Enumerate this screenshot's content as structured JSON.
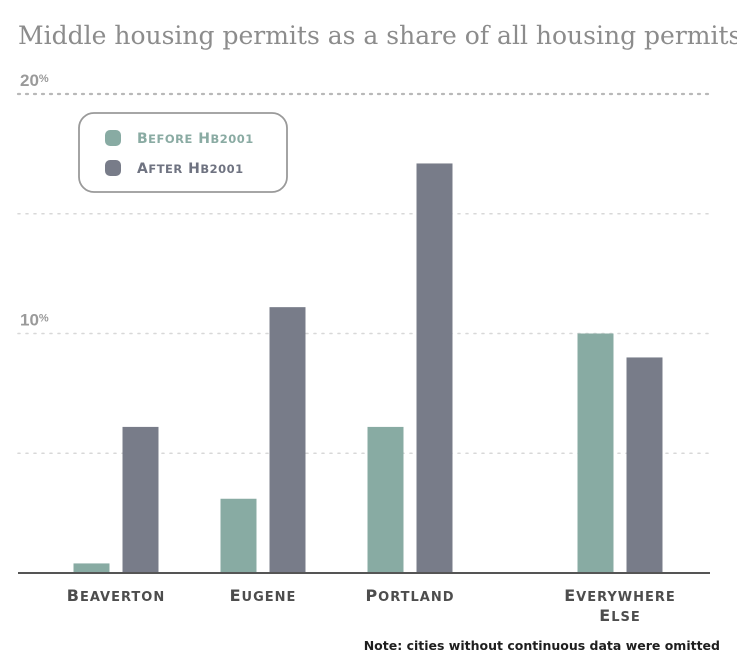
{
  "chart_data": {
    "type": "bar",
    "title": "Middle housing permits as a share of all housing permits",
    "categories": [
      "Beaverton",
      "Eugene",
      "Portland",
      "Everywhere else"
    ],
    "series": [
      {
        "name": "Before HB2001",
        "color": "#88aba3",
        "values": [
          0.4,
          3.1,
          6.1,
          10.0
        ]
      },
      {
        "name": "After HB2001",
        "color": "#787c89",
        "values": [
          6.1,
          11.1,
          17.1,
          9.0
        ]
      }
    ],
    "ylim": [
      0,
      20
    ],
    "yticks": [
      {
        "value": 20,
        "label": "20",
        "unit": "%"
      },
      {
        "value": 10,
        "label": "10",
        "unit": "%"
      }
    ],
    "grid": true,
    "legend_position": "top-left",
    "note": "Note: cities without continuous data were omitted"
  }
}
